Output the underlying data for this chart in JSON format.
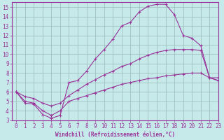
{
  "xlabel": "Windchill (Refroidissement éolien,°C)",
  "xlim": [
    -0.5,
    23
  ],
  "ylim": [
    3,
    15.5
  ],
  "yticks": [
    3,
    4,
    5,
    6,
    7,
    8,
    9,
    10,
    11,
    12,
    13,
    14,
    15
  ],
  "xticks": [
    0,
    1,
    2,
    3,
    4,
    5,
    6,
    7,
    8,
    9,
    10,
    11,
    12,
    13,
    14,
    15,
    16,
    17,
    18,
    19,
    20,
    21,
    22,
    23
  ],
  "bg_color": "#c6eaea",
  "grid_color": "#9ab8b8",
  "line_color": "#993399",
  "line1_x": [
    0,
    1,
    2,
    3,
    4,
    5,
    6,
    7,
    8,
    9,
    10,
    11,
    12,
    13,
    14,
    15,
    16,
    17,
    18,
    19,
    20,
    21,
    22,
    23
  ],
  "line1_y": [
    6.0,
    4.8,
    4.7,
    3.6,
    3.2,
    3.5,
    7.0,
    7.2,
    8.2,
    9.5,
    10.5,
    11.6,
    13.0,
    13.4,
    14.5,
    15.1,
    15.3,
    15.3,
    14.2,
    12.0,
    11.7,
    10.9,
    7.5,
    7.5
  ],
  "line2_x": [
    0,
    1,
    2,
    3,
    4,
    5,
    6,
    7,
    8,
    9,
    10,
    11,
    12,
    13,
    14,
    15,
    16,
    17,
    18,
    19,
    20,
    21,
    22,
    23
  ],
  "line2_y": [
    6.0,
    5.5,
    5.3,
    4.8,
    4.5,
    4.8,
    5.6,
    6.2,
    6.8,
    7.3,
    7.8,
    8.2,
    8.7,
    9.0,
    9.5,
    9.9,
    10.2,
    10.4,
    10.5,
    10.5,
    10.5,
    10.4,
    7.5,
    7.2
  ],
  "line3_x": [
    0,
    1,
    2,
    3,
    4,
    5,
    6,
    7,
    8,
    9,
    10,
    11,
    12,
    13,
    14,
    15,
    16,
    17,
    18,
    19,
    20,
    21,
    22,
    23
  ],
  "line3_y": [
    6.0,
    5.0,
    4.8,
    4.0,
    3.5,
    4.0,
    5.0,
    5.3,
    5.6,
    5.9,
    6.2,
    6.5,
    6.8,
    7.0,
    7.2,
    7.4,
    7.5,
    7.7,
    7.8,
    7.9,
    8.0,
    8.0,
    7.5,
    7.2
  ]
}
